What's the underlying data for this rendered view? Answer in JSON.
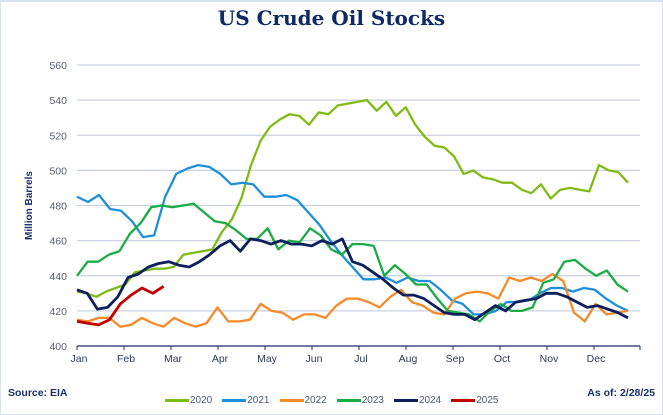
{
  "title": "US Crude Oil Stocks",
  "footer": {
    "source": "Source: EIA",
    "as_of": "As of: 2/28/25"
  },
  "chart_data": {
    "type": "line",
    "title": "US Crude Oil Stocks",
    "xlabel": "",
    "ylabel": "Million Barrels",
    "ylim": [
      400,
      560
    ],
    "yticks": [
      400,
      420,
      440,
      460,
      480,
      500,
      520,
      540,
      560
    ],
    "xticks": [
      "Jan",
      "Feb",
      "Mar",
      "Apr",
      "May",
      "Jun",
      "Jul",
      "Aug",
      "Sep",
      "Oct",
      "Nov",
      "Dec"
    ],
    "x_unit": "week of year",
    "grid": true,
    "legend": "bottom",
    "series": [
      {
        "name": "2020",
        "color": "#7ebc14",
        "values": [
          431,
          430,
          428,
          431,
          433,
          435,
          442,
          443,
          444,
          444,
          445,
          452,
          453,
          454,
          455,
          465,
          472,
          484,
          503,
          517,
          525,
          529,
          532,
          531,
          526,
          533,
          532,
          537,
          538,
          539,
          540,
          534,
          539,
          531,
          536,
          526,
          519,
          514,
          513,
          508,
          498,
          500,
          496,
          495,
          493,
          493,
          489,
          487,
          492,
          484,
          489,
          490,
          489,
          488,
          503,
          500,
          499,
          493
        ]
      },
      {
        "name": "2021",
        "color": "#1f8fdc",
        "values": [
          485,
          482,
          486,
          478,
          477,
          471,
          462,
          463,
          485,
          498,
          501,
          503,
          502,
          498,
          492,
          493,
          492,
          485,
          485,
          486,
          483,
          476,
          469,
          460,
          452,
          445,
          438,
          438,
          439,
          436,
          439,
          437,
          437,
          432,
          426,
          424,
          418,
          418,
          420,
          425,
          425,
          426,
          430,
          433,
          433,
          431,
          433,
          432,
          427,
          423,
          420
        ]
      },
      {
        "name": "2022",
        "color": "#f58a2a",
        "values": [
          415,
          414,
          416,
          416,
          411,
          412,
          416,
          413,
          411,
          416,
          413,
          411,
          413,
          422,
          414,
          414,
          415,
          424,
          420,
          419,
          415,
          418,
          418,
          416,
          423,
          427,
          427,
          425,
          422,
          428,
          432,
          425,
          423,
          419,
          418,
          427,
          430,
          431,
          430,
          427,
          439,
          437,
          439,
          437,
          441,
          437,
          419,
          414,
          424,
          418,
          419,
          420
        ]
      },
      {
        "name": "2023",
        "color": "#1aab45",
        "values": [
          440,
          448,
          448,
          452,
          454,
          464,
          470,
          479,
          480,
          479,
          480,
          481,
          476,
          471,
          470,
          466,
          461,
          461,
          467,
          455,
          460,
          459,
          467,
          463,
          455,
          452,
          458,
          458,
          457,
          440,
          446,
          441,
          435,
          435,
          427,
          420,
          419,
          418,
          414,
          420,
          424,
          420,
          420,
          422,
          436,
          438,
          448,
          449,
          444,
          440,
          443,
          435,
          431
        ]
      },
      {
        "name": "2024",
        "color": "#0d1f5c",
        "values": [
          432,
          430,
          421,
          422,
          428,
          439,
          441,
          445,
          447,
          448,
          446,
          445,
          448,
          452,
          457,
          460,
          454,
          461,
          460,
          458,
          460,
          458,
          458,
          457,
          460,
          458,
          461,
          448,
          446,
          442,
          438,
          433,
          429,
          429,
          427,
          423,
          419,
          418,
          418,
          415,
          419,
          423,
          420,
          425,
          426,
          427,
          430,
          430,
          428,
          425,
          422,
          423,
          421,
          419,
          416
        ]
      },
      {
        "name": "2025",
        "color": "#c00000",
        "values": [
          414,
          413,
          412,
          415,
          424,
          429,
          433,
          430,
          434
        ]
      }
    ]
  }
}
